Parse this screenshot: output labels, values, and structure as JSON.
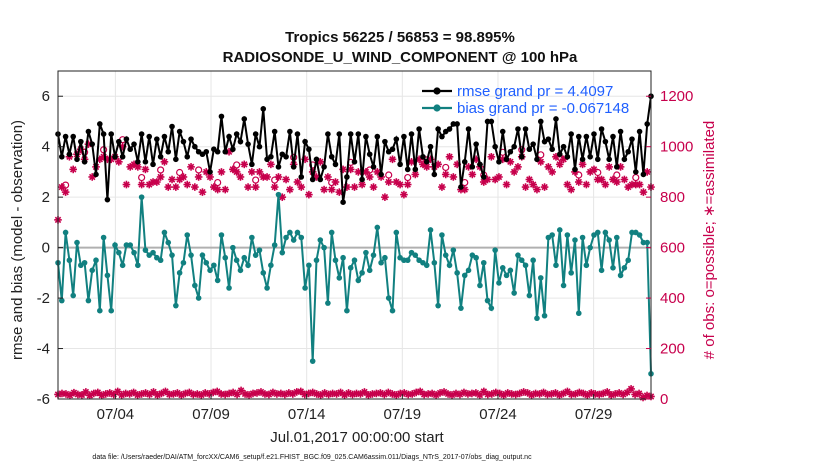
{
  "title_line1": "Tropics 56225 / 56853 = 98.895%",
  "title_line2": "RADIOSONDE_U_WIND_COMPONENT @ 100 hPa",
  "footnote": "data file: /Users/raeder/DAI/ATM_forcXX/CAM6_setup/f.e21.FHIST_BGC.f09_025.CAM6assim.011/Diags_NTrS_2017-07/obs_diag_output.nc",
  "colors": {
    "rmse": "#000000",
    "bias": "#118080",
    "obs": "#c7004c",
    "legend_text": "#1f5fff",
    "zero_line": "#b0b0b0"
  },
  "chart_data": {
    "type": "line",
    "xlabel": "Jul.01,2017 00:00:00 start",
    "ylabel": "rmse and bias (model - observation)",
    "y2label": "# of obs: o=possible; ∗=assimilated",
    "xlim": [
      1,
      32
    ],
    "ylim": [
      -6,
      7
    ],
    "y2lim": [
      0,
      1300
    ],
    "x_ticks": [
      {
        "value": 4,
        "label": "07/04"
      },
      {
        "value": 9,
        "label": "07/09"
      },
      {
        "value": 14,
        "label": "07/14"
      },
      {
        "value": 19,
        "label": "07/19"
      },
      {
        "value": 24,
        "label": "07/24"
      },
      {
        "value": 29,
        "label": "07/29"
      }
    ],
    "y_ticks": [
      "-6",
      "-4",
      "-2",
      "0",
      "2",
      "4",
      "6"
    ],
    "y2_ticks": [
      "0",
      "200",
      "400",
      "600",
      "800",
      "1000",
      "1200"
    ],
    "legend": [
      {
        "label": "rmse grand pr = 4.4097"
      },
      {
        "label": "bias grand pr = -0.067148"
      }
    ],
    "rmse": [
      4.5,
      3.6,
      4.4,
      3.7,
      4.4,
      3.5,
      4.2,
      3.4,
      4.6,
      4.1,
      2.9,
      4.9,
      4.5,
      1.9,
      4.5,
      3.6,
      4.2,
      3.6,
      4.3,
      3.9,
      4.1,
      3.4,
      4.5,
      3.4,
      4.4,
      3.3,
      4.3,
      3.6,
      4.4,
      3.8,
      4.8,
      3.5,
      4.6,
      4.2,
      3.6,
      4.3,
      4.0,
      3.8,
      3.7,
      3.8,
      3.0,
      3.9,
      3.8,
      5.2,
      3.8,
      4.4,
      3.9,
      4.5,
      4.2,
      5.1,
      4.1,
      3.3,
      4.5,
      4.0,
      5.5,
      3.5,
      3.6,
      4.6,
      3.2,
      3.7,
      3.6,
      4.6,
      3.2,
      4.5,
      2.8,
      4.2,
      3.9,
      2.7,
      3.5,
      2.7,
      3.2,
      4.5,
      3.6,
      3.3,
      4.5,
      1.8,
      2.8,
      4.5,
      3.4,
      4.5,
      2.7,
      4.4,
      3.7,
      3.2,
      4.4,
      2.9,
      4.2,
      3.8,
      3.9,
      4.3,
      3.3,
      4.4,
      3.1,
      4.5,
      3.1,
      4.7,
      3.6,
      3.4,
      4.0,
      2.9,
      4.7,
      4.4,
      4.6,
      4.7,
      4.9,
      4.9,
      2.4,
      3.4,
      4.7,
      3.2,
      4.1,
      3.3,
      2.8,
      5.0,
      5.0,
      4.0,
      3.4,
      4.6,
      3.5,
      3.8,
      4.0,
      4.7,
      3.6,
      4.7,
      3.9,
      4.1,
      3.5,
      5.0,
      4.2,
      4.3,
      3.9,
      5.1,
      3.7,
      4.0,
      3.6,
      4.5,
      3.1,
      4.4,
      3.5,
      4.4,
      3.6,
      4.5,
      3.5,
      4.7,
      4.2,
      3.5,
      4.4,
      3.2,
      4.6,
      3.5,
      3.8,
      4.3,
      3.0,
      4.6,
      2.9,
      4.9,
      6.0
    ],
    "bias": [
      -0.6,
      -2.1,
      0.6,
      -0.5,
      -1.9,
      0.2,
      -0.7,
      -0.6,
      -2.1,
      -0.9,
      -0.5,
      -2.5,
      0.4,
      -1.1,
      -2.5,
      0.1,
      -0.2,
      -0.7,
      0.1,
      0.1,
      -0.2,
      -0.7,
      2.0,
      -0.1,
      -0.3,
      -0.2,
      -0.4,
      -0.5,
      0.6,
      0.2,
      -0.3,
      -2.3,
      -1.0,
      -0.6,
      0.5,
      -0.3,
      -1.5,
      -2.0,
      -0.3,
      -0.6,
      -0.9,
      -0.7,
      -1.3,
      0.5,
      -0.4,
      -1.6,
      0.0,
      -0.5,
      -0.9,
      -0.4,
      -0.7,
      0.4,
      -0.3,
      -0.1,
      -1.0,
      -1.6,
      -0.7,
      0.1,
      2.1,
      -0.2,
      0.4,
      0.6,
      0.3,
      0.6,
      0.4,
      -1.6,
      -0.7,
      -4.5,
      -0.5,
      0.3,
      0.0,
      -2.2,
      0.6,
      -0.5,
      -1.2,
      -0.4,
      -2.5,
      -0.8,
      -0.5,
      -1.3,
      -1.0,
      -0.2,
      -0.9,
      -0.3,
      0.8,
      -0.6,
      -0.4,
      -2.0,
      -2.5,
      0.6,
      -0.4,
      -0.5,
      -0.5,
      -0.2,
      -0.3,
      -0.5,
      -0.6,
      -0.7,
      0.7,
      -0.6,
      -2.3,
      0.5,
      -0.3,
      -0.7,
      -0.1,
      -1.0,
      -2.4,
      -1.1,
      -0.9,
      -0.3,
      -0.4,
      -1.5,
      -0.6,
      -2.1,
      -2.4,
      -0.1,
      -1.4,
      -0.8,
      -1.1,
      -0.9,
      -1.8,
      -0.3,
      -0.5,
      -0.7,
      -1.9,
      -0.5,
      -2.8,
      -1.2,
      -2.7,
      0.4,
      0.5,
      -0.7,
      0.7,
      -1.5,
      0.5,
      -1.0,
      0.3,
      -2.6,
      0.4,
      -0.7,
      0.0,
      0.5,
      0.6,
      -0.9,
      0.6,
      0.3,
      -0.8,
      0.4,
      -1.1,
      -0.8,
      -0.5,
      0.6,
      0.6,
      0.5,
      0.2,
      0.2,
      -5.0
    ],
    "obs_high": [
      710,
      840,
      820,
      960,
      910,
      970,
      990,
      950,
      1010,
      880,
      920,
      950,
      960,
      950,
      950,
      960,
      940,
      1000,
      850,
      920,
      930,
      920,
      850,
      910,
      850,
      860,
      860,
      880,
      940,
      840,
      870,
      840,
      870,
      880,
      850,
      920,
      840,
      880,
      820,
      900,
      880,
      840,
      830,
      900,
      830,
      980,
      910,
      900,
      880,
      930,
      840,
      900,
      840,
      900,
      880,
      880,
      930,
      840,
      880,
      800,
      870,
      830,
      930,
      860,
      840,
      950,
      810,
      900,
      880,
      940,
      830,
      880,
      830,
      860,
      820,
      910,
      840,
      910,
      840,
      900,
      850,
      900,
      880,
      840,
      900,
      880,
      800,
      860,
      950,
      860,
      850,
      810,
      850,
      940,
      890,
      950,
      930,
      920,
      950,
      920,
      930,
      840,
      890,
      960,
      880,
      930,
      830,
      830,
      920,
      890,
      950,
      920,
      860,
      870,
      960,
      870,
      880,
      950,
      850,
      940,
      900,
      920,
      960,
      840,
      870,
      850,
      830,
      940,
      840,
      920,
      900,
      960,
      930,
      950,
      850,
      830,
      900,
      860,
      930,
      850,
      900,
      910,
      870,
      870,
      850,
      920,
      870,
      860,
      920,
      870,
      840,
      850,
      850,
      850,
      820,
      900,
      840
    ],
    "obs_low": [
      18,
      22,
      20,
      15,
      25,
      18,
      16,
      28,
      14,
      22,
      26,
      15,
      20,
      24,
      18,
      30,
      16,
      22,
      20,
      26,
      16,
      20,
      24,
      18,
      28,
      16,
      22,
      30,
      18,
      20,
      24,
      16,
      22,
      26,
      18,
      20,
      16,
      24,
      20,
      26,
      30,
      20,
      18,
      22,
      26,
      18,
      34,
      20,
      16,
      22,
      24,
      28,
      20,
      18,
      26,
      20,
      22,
      18,
      24,
      20,
      28,
      30,
      18,
      22,
      26,
      20,
      16,
      24,
      18,
      22,
      20,
      26,
      16,
      24,
      18,
      22,
      20,
      28,
      16,
      20,
      22,
      24,
      18,
      26,
      20,
      16,
      22,
      24,
      18,
      20,
      26,
      30,
      18,
      20,
      22,
      16,
      24,
      28,
      20,
      16,
      22,
      18,
      26,
      20,
      22,
      24,
      16,
      30,
      18,
      20,
      26,
      22,
      16,
      24,
      20,
      18,
      22,
      28,
      24,
      16,
      22,
      20,
      26,
      18,
      20,
      24,
      16,
      22,
      30,
      18,
      20,
      26,
      22,
      16,
      24,
      20,
      18,
      22,
      28,
      16,
      20,
      24,
      18,
      26,
      40,
      18,
      22,
      6,
      14,
      10
    ]
  }
}
